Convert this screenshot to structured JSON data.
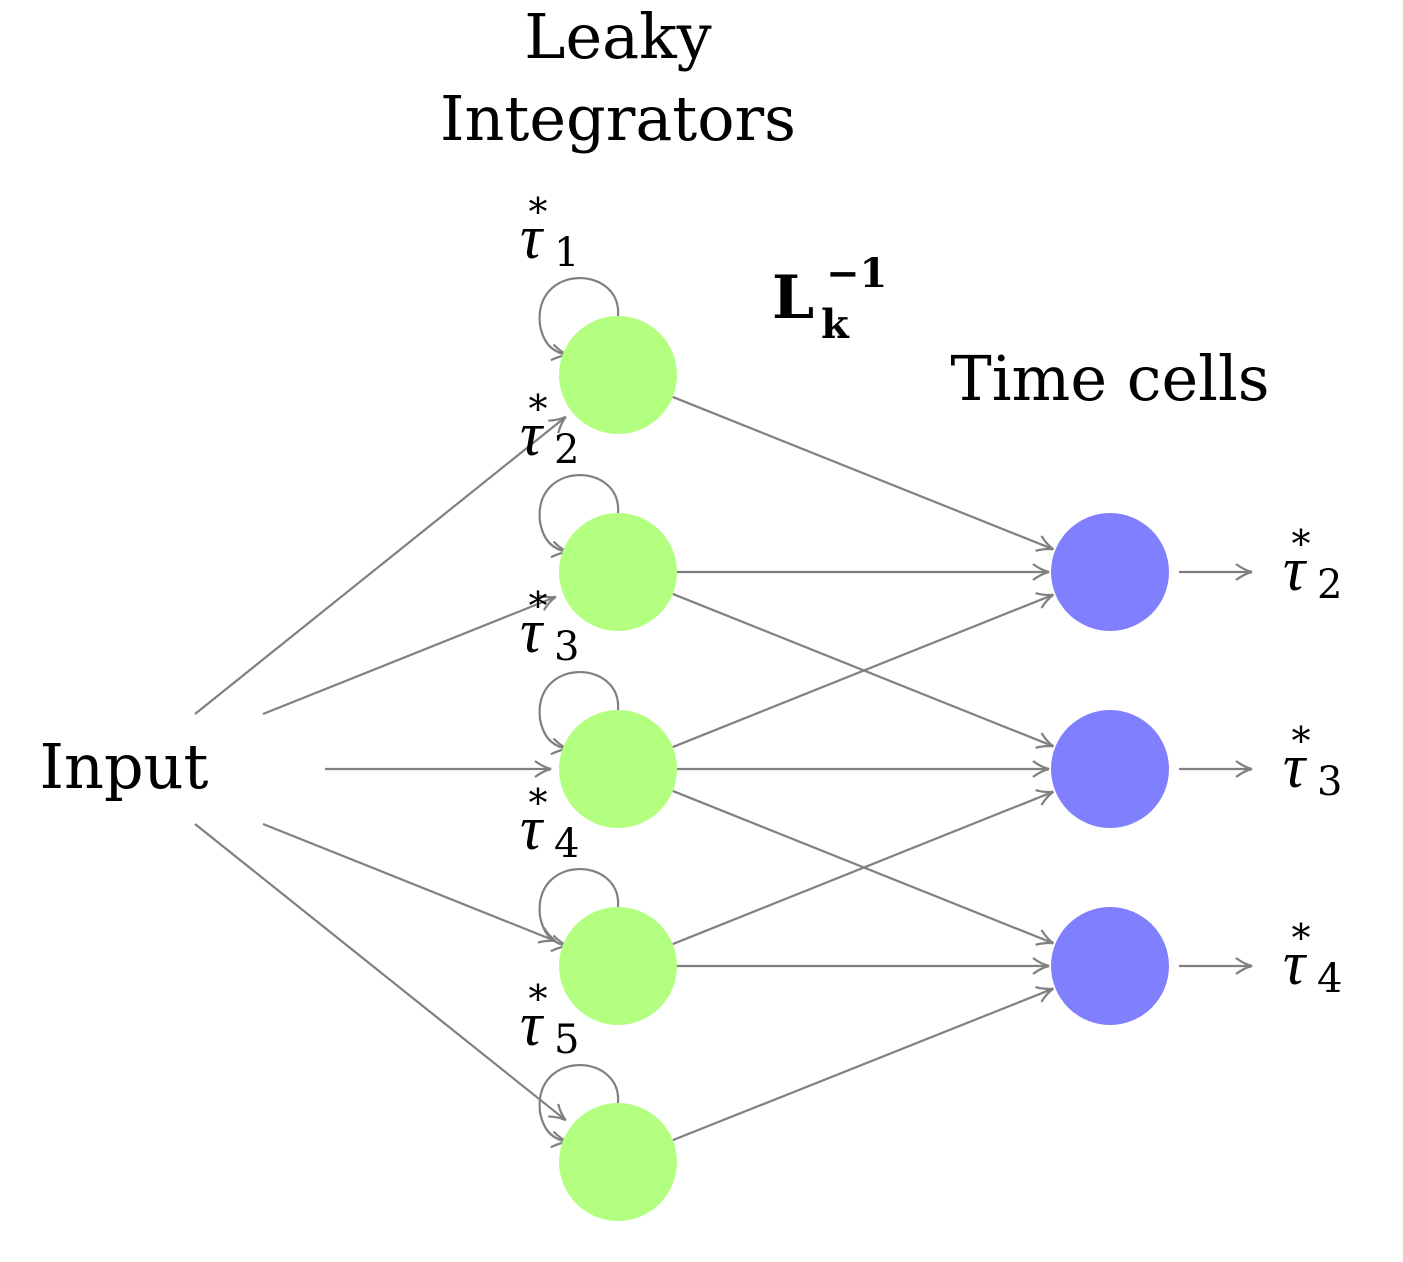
{
  "header": {
    "integrators_title_line1": "Leaky",
    "integrators_title_line2": "Integrators",
    "operator_base": "L",
    "operator_sub": "k",
    "operator_sup": "−1",
    "time_cells_title": "Time cells",
    "input_label": "Input"
  },
  "integrators": [
    {
      "symbol": "τ",
      "star": "*",
      "index": "1"
    },
    {
      "symbol": "τ",
      "star": "*",
      "index": "2"
    },
    {
      "symbol": "τ",
      "star": "*",
      "index": "3"
    },
    {
      "symbol": "τ",
      "star": "*",
      "index": "4"
    },
    {
      "symbol": "τ",
      "star": "*",
      "index": "5"
    }
  ],
  "time_cells": [
    {
      "symbol": "τ",
      "star": "*",
      "index": "2"
    },
    {
      "symbol": "τ",
      "star": "*",
      "index": "3"
    },
    {
      "symbol": "τ",
      "star": "*",
      "index": "4"
    }
  ],
  "colors": {
    "integrator_fill": "#b3ff80",
    "time_cell_fill": "#8080ff",
    "edge_stroke": "#808080"
  }
}
